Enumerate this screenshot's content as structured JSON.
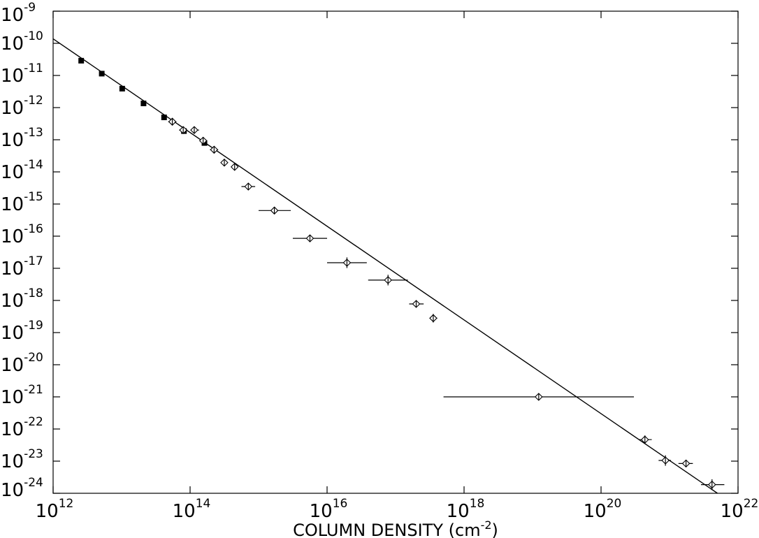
{
  "chart_data": {
    "type": "scatter",
    "xscale": "log",
    "yscale": "log",
    "xlim": [
      1000000000000.0,
      1e+22
    ],
    "ylim": [
      1e-24,
      1e-09
    ],
    "xticks": [
      {
        "base": "10",
        "exp": "12",
        "value": 1000000000000.0
      },
      {
        "base": "10",
        "exp": "14",
        "value": 100000000000000.0
      },
      {
        "base": "10",
        "exp": "16",
        "value": 1e+16
      },
      {
        "base": "10",
        "exp": "18",
        "value": 1e+18
      },
      {
        "base": "10",
        "exp": "20",
        "value": 1e+20
      },
      {
        "base": "10",
        "exp": "22",
        "value": 1e+22
      }
    ],
    "yticks": [
      {
        "base": "10",
        "exp": "-9",
        "value": 1e-09
      },
      {
        "base": "10",
        "exp": "-10",
        "value": 1e-10
      },
      {
        "base": "10",
        "exp": "-11",
        "value": 1e-11
      },
      {
        "base": "10",
        "exp": "-12",
        "value": 1e-12
      },
      {
        "base": "10",
        "exp": "-13",
        "value": 1e-13
      },
      {
        "base": "10",
        "exp": "-14",
        "value": 1e-14
      },
      {
        "base": "10",
        "exp": "-15",
        "value": 1e-15
      },
      {
        "base": "10",
        "exp": "-16",
        "value": 1e-16
      },
      {
        "base": "10",
        "exp": "-17",
        "value": 1e-17
      },
      {
        "base": "10",
        "exp": "-18",
        "value": 1e-18
      },
      {
        "base": "10",
        "exp": "-19",
        "value": 1e-19
      },
      {
        "base": "10",
        "exp": "-20",
        "value": 1e-20
      },
      {
        "base": "10",
        "exp": "-21",
        "value": 1e-21
      },
      {
        "base": "10",
        "exp": "-22",
        "value": 1e-22
      },
      {
        "base": "10",
        "exp": "-23",
        "value": 1e-23
      },
      {
        "base": "10",
        "exp": "-24",
        "value": 1e-24
      }
    ],
    "xlabel": "COLUMN DENSITY (cm",
    "xlabel_sup": "-2",
    "xlabel_end": ")",
    "ylabel": "",
    "title": "",
    "grid": false,
    "fit_line": {
      "x": [
        1000000000000.0,
        5.01e+21
      ],
      "y": [
        1.38e-10,
        1e-24
      ]
    },
    "series": [
      {
        "marker": "filled-square",
        "points": [
          {
            "x": 2570000000000.0,
            "y": 2.88e-11
          },
          {
            "x": 5130000000000.0,
            "y": 1.14e-11
          },
          {
            "x": 10200000000000.0,
            "y": 3.89e-12
          },
          {
            "x": 20900000000000.0,
            "y": 1.35e-12
          },
          {
            "x": 41700000000000.0,
            "y": 4.97e-13
          },
          {
            "x": 81300000000000.0,
            "y": 1.86e-13
          },
          {
            "x": 162000000000000.0,
            "y": 7.94e-14
          }
        ]
      },
      {
        "marker": "open-diamond",
        "points": [
          {
            "x": 55000000000000.0,
            "y": 3.64e-13,
            "xerr_lo": 47900000000000.0,
            "xerr_hi": 63100000000000.0
          },
          {
            "x": 79400000000000.0,
            "y": 2e-13,
            "xerr_lo": 69200000000000.0,
            "xerr_hi": 91200000000000.0
          },
          {
            "x": 115000000000000.0,
            "y": 2e-13,
            "xerr_lo": 102000000000000.0,
            "xerr_hi": 135000000000000.0
          },
          {
            "x": 155000000000000.0,
            "y": 9.33e-14,
            "xerr_lo": 138000000000000.0,
            "xerr_hi": 174000000000000.0
          },
          {
            "x": 224000000000000.0,
            "y": 4.89e-14,
            "xerr_lo": 195000000000000.0,
            "xerr_hi": 257000000000000.0
          },
          {
            "x": 316000000000000.0,
            "y": 1.94e-14,
            "xerr_lo": 282000000000000.0,
            "xerr_hi": 355000000000000.0
          },
          {
            "x": 447000000000000.0,
            "y": 1.43e-14,
            "xerr_lo": 398000000000000.0,
            "xerr_hi": 501000000000000.0
          },
          {
            "x": 708000000000000.0,
            "y": 3.49e-15,
            "xerr_lo": 562000000000000.0,
            "xerr_hi": 891000000000000.0
          },
          {
            "x": 1700000000000000.0,
            "y": 6.27e-16,
            "xerr_lo": 1000000000000000.0,
            "xerr_hi": 2950000000000000.0
          },
          {
            "x": 5620000000000000.0,
            "y": 8.56e-17,
            "xerr_lo": 3160000000000000.0,
            "xerr_hi": 1e+16
          },
          {
            "x": 1.95e+16,
            "y": 1.49e-17,
            "xerr_lo": 1e+16,
            "xerr_hi": 3.8e+16,
            "yerr_lo": 1.02e-17,
            "yerr_hi": 2.18e-17
          },
          {
            "x": 7.76e+16,
            "y": 4.3e-18,
            "xerr_lo": 3.98e+16,
            "xerr_hi": 1.51e+17,
            "yerr_lo": 2.94e-18,
            "yerr_hi": 6.29e-18
          },
          {
            "x": 2e+17,
            "y": 7.79e-19,
            "xerr_lo": 1.58e+17,
            "xerr_hi": 2.57e+17
          },
          {
            "x": 3.55e+17,
            "y": 2.8e-19,
            "xerr_lo": 3.16e+17,
            "xerr_hi": 4.07e+17,
            "yerr_lo": 2.06e-19,
            "yerr_hi": 3.81e-19
          },
          {
            "x": 1.23e+19,
            "y": 1e-21,
            "xerr_lo": 5.01e+17,
            "xerr_hi": 3.02e+20
          },
          {
            "x": 4.37e+20,
            "y": 4.67e-23,
            "xerr_lo": 3.55e+20,
            "xerr_hi": 5.5e+20,
            "yerr_lo": 3.45e-23,
            "yerr_hi": 6.31e-23
          },
          {
            "x": 8.71e+20,
            "y": 1.05e-23,
            "xerr_lo": 6.92e+20,
            "xerr_hi": 1.05e+21,
            "yerr_lo": 7.18e-24,
            "yerr_hi": 1.52e-23
          },
          {
            "x": 1.74e+21,
            "y": 8.46e-24,
            "xerr_lo": 1.35e+21,
            "xerr_hi": 2.19e+21,
            "yerr_lo": 6.76e-24,
            "yerr_hi": 1.06e-23
          },
          {
            "x": 4.17e+21,
            "y": 1.86e-24,
            "xerr_lo": 2.88e+21,
            "xerr_hi": 6.31e+21,
            "yerr_lo": 1.27e-24,
            "yerr_hi": 2.73e-24
          }
        ]
      }
    ]
  }
}
